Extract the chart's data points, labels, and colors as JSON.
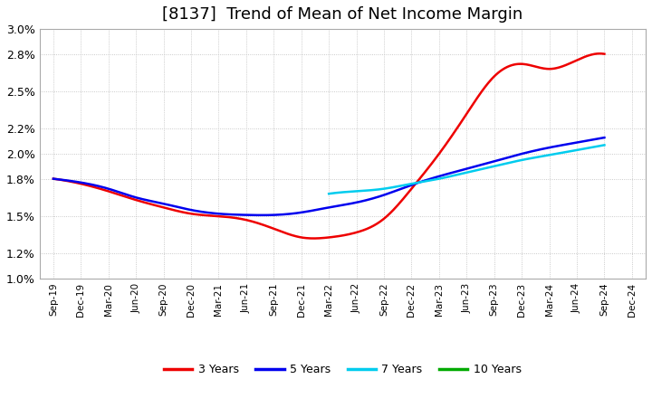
{
  "title": "[8137]  Trend of Mean of Net Income Margin",
  "title_fontsize": 13,
  "ylim": [
    0.01,
    0.03
  ],
  "yticks": [
    0.01,
    0.012,
    0.015,
    0.018,
    0.02,
    0.022,
    0.025,
    0.028,
    0.03
  ],
  "ytick_labels": [
    "1.0%",
    "1.2%",
    "1.5%",
    "1.8%",
    "2.0%",
    "2.2%",
    "2.5%",
    "2.8%",
    "3.0%"
  ],
  "x_labels": [
    "Sep-19",
    "Dec-19",
    "Mar-20",
    "Jun-20",
    "Sep-20",
    "Dec-20",
    "Mar-21",
    "Jun-21",
    "Sep-21",
    "Dec-21",
    "Mar-22",
    "Jun-22",
    "Sep-22",
    "Dec-22",
    "Mar-23",
    "Jun-23",
    "Sep-23",
    "Dec-23",
    "Mar-24",
    "Jun-24",
    "Sep-24",
    "Dec-24"
  ],
  "series": {
    "3 Years": {
      "color": "#EE0000",
      "linewidth": 1.8,
      "values": [
        0.018,
        0.0176,
        0.017,
        0.0163,
        0.0157,
        0.0152,
        0.015,
        0.0147,
        0.014,
        0.0133,
        0.0133,
        0.0137,
        0.0148,
        0.0172,
        0.02,
        0.0232,
        0.0262,
        0.0272,
        0.0268,
        0.0275,
        0.028,
        null
      ]
    },
    "5 Years": {
      "color": "#0000EE",
      "linewidth": 1.8,
      "values": [
        0.018,
        0.0177,
        0.0172,
        0.0165,
        0.016,
        0.0155,
        0.0152,
        0.0151,
        0.0151,
        0.0153,
        0.0157,
        0.0161,
        0.0167,
        0.0175,
        0.0182,
        0.0188,
        0.0194,
        0.02,
        0.0205,
        0.0209,
        0.0213,
        null
      ]
    },
    "7 Years": {
      "color": "#00CCEE",
      "linewidth": 1.8,
      "values": [
        null,
        null,
        null,
        null,
        null,
        null,
        null,
        null,
        null,
        null,
        0.0168,
        0.017,
        0.0172,
        0.0176,
        0.018,
        0.0185,
        0.019,
        0.0195,
        0.0199,
        0.0203,
        0.0207,
        null
      ]
    },
    "10 Years": {
      "color": "#00AA00",
      "linewidth": 1.8,
      "values": [
        null,
        null,
        null,
        null,
        null,
        null,
        null,
        null,
        null,
        null,
        null,
        null,
        null,
        null,
        null,
        null,
        null,
        null,
        null,
        null,
        null,
        null
      ]
    }
  },
  "legend_entries": [
    "3 Years",
    "5 Years",
    "7 Years",
    "10 Years"
  ],
  "legend_colors": [
    "#EE0000",
    "#0000EE",
    "#00CCEE",
    "#00AA00"
  ],
  "background_color": "#FFFFFF",
  "grid_color": "#BBBBBB",
  "plot_bg_color": "#FFFFFF"
}
